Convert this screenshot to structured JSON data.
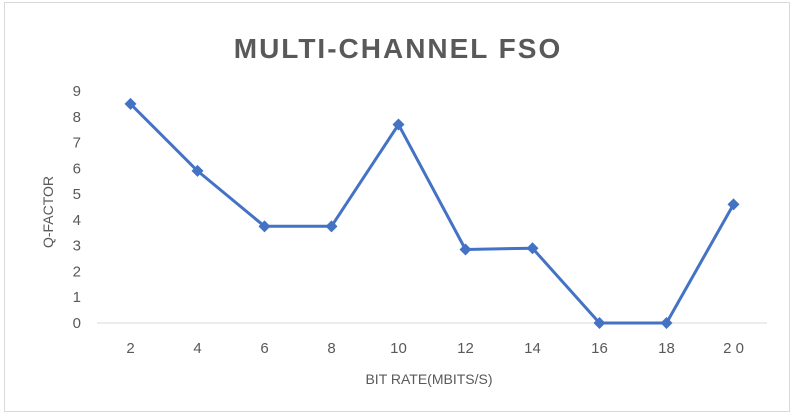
{
  "chart_data": {
    "type": "line",
    "title": "MULTI-CHANNEL FSO",
    "xlabel": "BIT RATE(MBITS/S)",
    "ylabel": "Q-FACTOR",
    "x": [
      2,
      4,
      6,
      8,
      10,
      12,
      14,
      16,
      18,
      20
    ],
    "x_tick_labels": [
      "2",
      "4",
      "6",
      "8",
      "10",
      "12",
      "14",
      "16",
      "18",
      "2 0"
    ],
    "series": [
      {
        "values": [
          8.5,
          5.9,
          3.75,
          3.75,
          7.7,
          2.85,
          2.9,
          0,
          0,
          4.6
        ]
      }
    ],
    "ylim": [
      0,
      9
    ],
    "y_ticks": [
      0,
      1,
      2,
      3,
      4,
      5,
      6,
      7,
      8,
      9
    ],
    "grid": false,
    "legend": "none",
    "marker": "diamond",
    "colors": {
      "series": "#4472c4",
      "text": "#595959",
      "axis": "#d9d9d9",
      "border": "#d9d9d9"
    }
  }
}
